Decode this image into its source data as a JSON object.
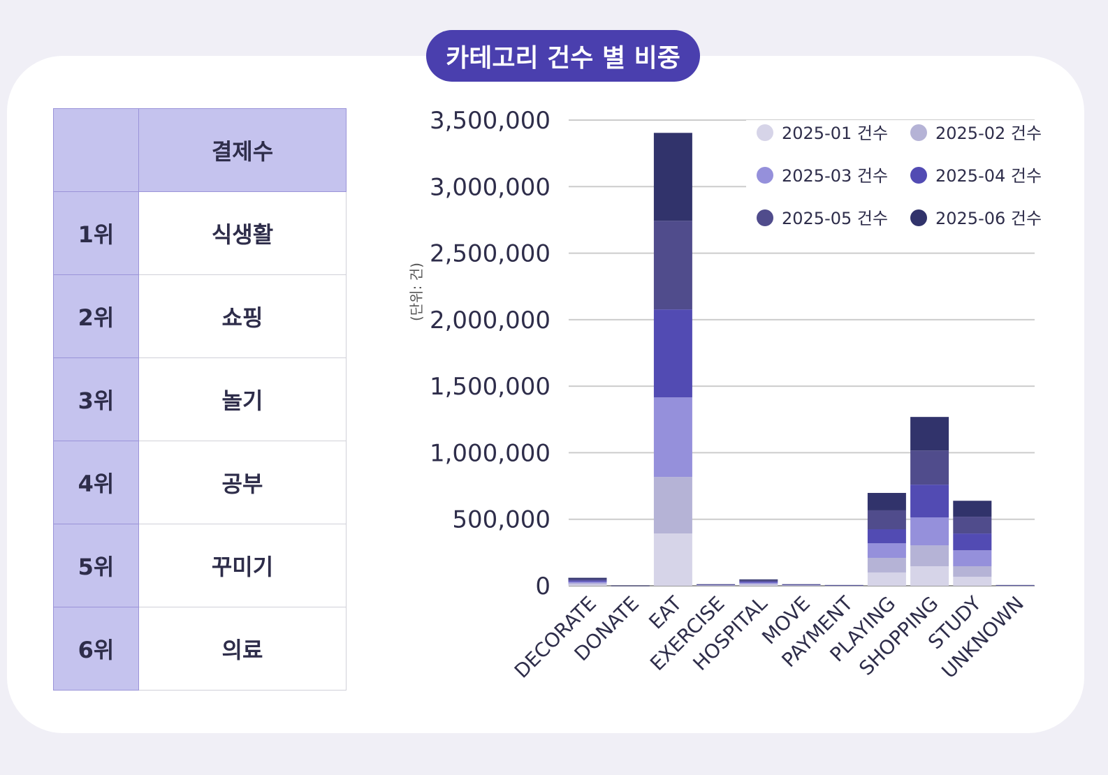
{
  "title": "카테고리 건수 별 비중",
  "table": {
    "header": [
      "",
      "결제수"
    ],
    "rows": [
      {
        "rank": "1위",
        "category": "식생활"
      },
      {
        "rank": "2위",
        "category": "쇼핑"
      },
      {
        "rank": "3위",
        "category": "놀기"
      },
      {
        "rank": "4위",
        "category": "공부"
      },
      {
        "rank": "5위",
        "category": "꾸미기"
      },
      {
        "rank": "6위",
        "category": "의료"
      }
    ]
  },
  "chart_data": {
    "type": "bar",
    "stacked": true,
    "ylabel": "(단위: 건)",
    "ylim": [
      0,
      3500000
    ],
    "yticks": [
      "0",
      "500,000",
      "1,000,000",
      "1,500,000",
      "2,000,000",
      "2,500,000",
      "3,000,000",
      "3,500,000"
    ],
    "grid": true,
    "legend_position": "top-right",
    "categories": [
      "DECORATE",
      "DONATE",
      "EAT",
      "EXERCISE",
      "HOSPITAL",
      "MOVE",
      "PAYMENT",
      "PLAYING",
      "SHOPPING",
      "STUDY",
      "UNKNOWN"
    ],
    "series": [
      {
        "name": "2025-01 건수",
        "color": "#d6d4e8",
        "values": [
          10000,
          200,
          393000,
          2000,
          8000,
          2000,
          1000,
          100000,
          147000,
          68000,
          1000
        ]
      },
      {
        "name": "2025-02 건수",
        "color": "#b5b3d6",
        "values": [
          10000,
          200,
          425000,
          2000,
          8000,
          2000,
          1000,
          110000,
          157000,
          79000,
          1000
        ]
      },
      {
        "name": "2025-03 건수",
        "color": "#9590db",
        "values": [
          10000,
          200,
          598000,
          2000,
          8000,
          2000,
          1000,
          110000,
          210000,
          120000,
          1000
        ]
      },
      {
        "name": "2025-04 건수",
        "color": "#524bb3",
        "values": [
          10000,
          200,
          661000,
          2000,
          8000,
          2000,
          1000,
          105000,
          246000,
          126000,
          1000
        ]
      },
      {
        "name": "2025-05 건수",
        "color": "#504c8c",
        "values": [
          10000,
          200,
          666000,
          2000,
          8000,
          2000,
          1000,
          142000,
          257000,
          126000,
          1000
        ]
      },
      {
        "name": "2025-06 건수",
        "color": "#31336b",
        "values": [
          10000,
          200,
          661000,
          2000,
          8000,
          2000,
          1000,
          131000,
          252000,
          120000,
          1000
        ]
      }
    ]
  }
}
